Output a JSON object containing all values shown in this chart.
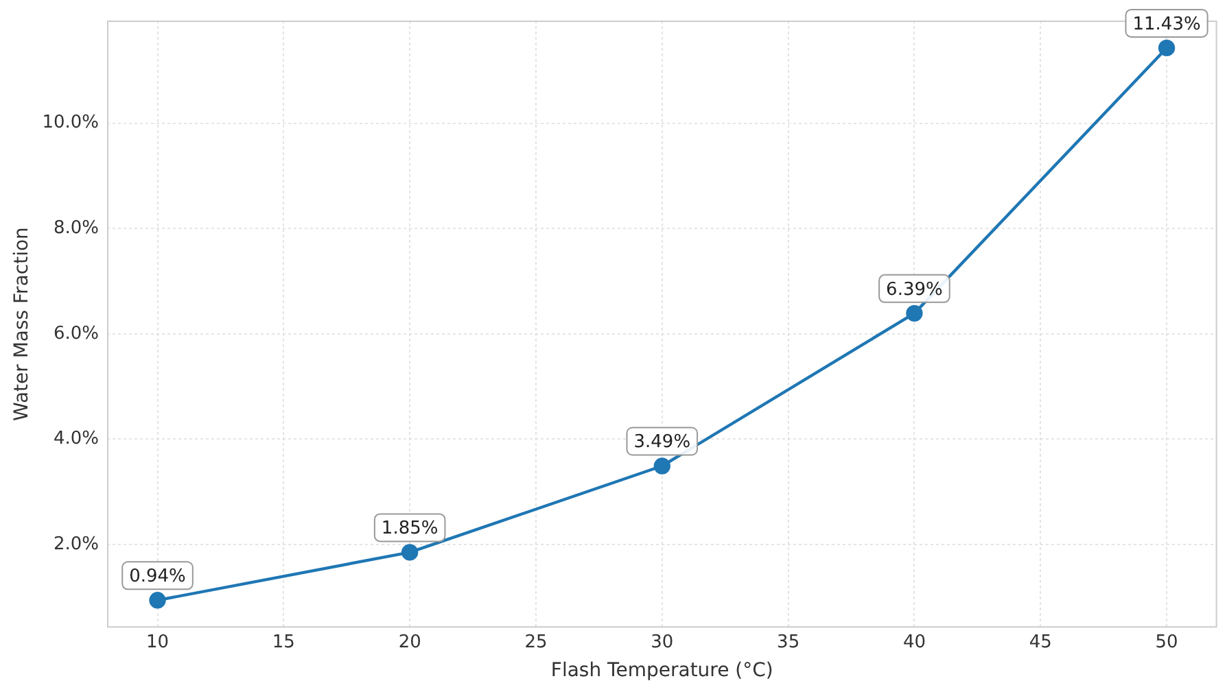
{
  "chart_data": {
    "type": "line",
    "xlabel": "Flash Temperature (°C)",
    "ylabel": "Water Mass Fraction",
    "x": [
      10,
      20,
      30,
      40,
      50
    ],
    "series": [
      {
        "color": "#1f77b4",
        "values": [
          0.94,
          1.85,
          3.49,
          6.39,
          11.43
        ],
        "value_labels": [
          "0.94%",
          "1.85%",
          "3.49%",
          "6.39%",
          "11.43%"
        ]
      }
    ],
    "xlim": [
      8,
      52
    ],
    "xticks": [
      10,
      15,
      20,
      25,
      30,
      35,
      40,
      45,
      50
    ],
    "ylim": [
      0.42,
      11.95
    ],
    "yticks": [
      {
        "value": 2,
        "label": "2.0%"
      },
      {
        "value": 4,
        "label": "4.0%"
      },
      {
        "value": 6,
        "label": "6.0%"
      },
      {
        "value": 8,
        "label": "8.0%"
      },
      {
        "value": 10,
        "label": "10.0%"
      }
    ],
    "grid": true,
    "legend": false,
    "marker": "circle",
    "line_style": "solid"
  }
}
